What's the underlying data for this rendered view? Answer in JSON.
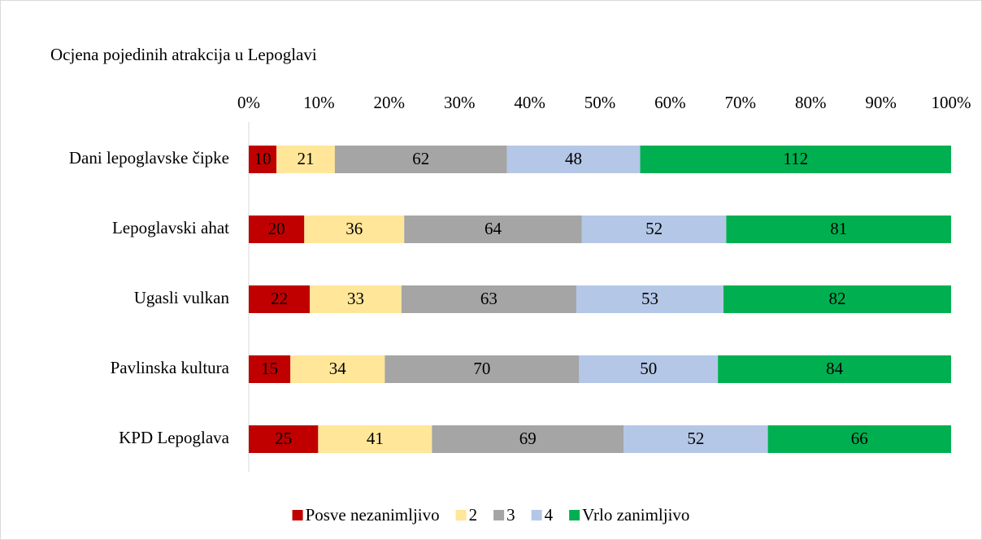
{
  "chart_data": {
    "type": "bar",
    "orientation": "horizontal",
    "stack": "percent",
    "title": "Ocjena pojedinih atrakcija u Lepoglavi",
    "categories": [
      "Dani lepoglavske čipke",
      "Lepoglavski ahat",
      "Ugasli vulkan",
      "Pavlinska kultura",
      "KPD Lepoglava"
    ],
    "series": [
      {
        "name": "Posve nezanimljivo",
        "color": "#c00000",
        "values": [
          10,
          20,
          22,
          15,
          25
        ]
      },
      {
        "name": "2",
        "color": "#ffe699",
        "values": [
          21,
          36,
          33,
          34,
          41
        ]
      },
      {
        "name": "3",
        "color": "#a5a5a5",
        "values": [
          62,
          64,
          63,
          70,
          69
        ]
      },
      {
        "name": "4",
        "color": "#b4c7e7",
        "values": [
          48,
          52,
          53,
          50,
          52
        ]
      },
      {
        "name": "Vrlo zanimljivo",
        "color": "#00b050",
        "values": [
          112,
          81,
          82,
          84,
          66
        ]
      }
    ],
    "xlim": [
      0,
      100
    ],
    "xticks": [
      {
        "value": 0,
        "label": "0%"
      },
      {
        "value": 10,
        "label": "10%"
      },
      {
        "value": 20,
        "label": "20%"
      },
      {
        "value": 30,
        "label": "30%"
      },
      {
        "value": 40,
        "label": "40%"
      },
      {
        "value": 50,
        "label": "50%"
      },
      {
        "value": 60,
        "label": "60%"
      },
      {
        "value": 70,
        "label": "70%"
      },
      {
        "value": 80,
        "label": "80%"
      },
      {
        "value": 90,
        "label": "90%"
      },
      {
        "value": 100,
        "label": "100%"
      }
    ],
    "legend": "bottom",
    "grid": false
  }
}
